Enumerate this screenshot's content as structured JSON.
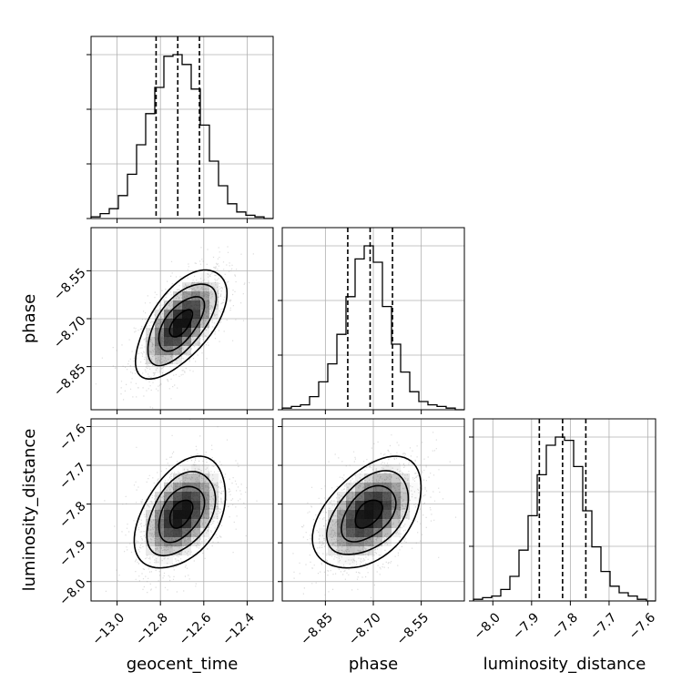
{
  "chart_data": {
    "type": "corner",
    "grid": true,
    "parameters": [
      {
        "name": "geocent_time",
        "xlabel": "geocent_time",
        "ylabel": "",
        "range": [
          -13.12,
          -12.28
        ],
        "ticks": [
          -13.0,
          -12.8,
          -12.6,
          -12.4
        ],
        "tick_labels": [
          "−13.0",
          "−12.8",
          "−12.6",
          "−12.4"
        ],
        "quantiles": [
          -12.82,
          -12.72,
          -12.62
        ],
        "hist_counts": [
          1,
          3,
          6,
          14,
          27,
          45,
          64,
          80,
          99,
          100,
          94,
          79,
          57,
          35,
          20,
          9,
          4,
          2,
          1,
          0
        ]
      },
      {
        "name": "phase",
        "xlabel": "phase",
        "ylabel": "phase",
        "range": [
          -8.985,
          -8.415
        ],
        "ticks": [
          -8.85,
          -8.7,
          -8.55
        ],
        "tick_labels": [
          "−8.85",
          "−8.70",
          "−8.55"
        ],
        "quantiles": [
          -8.78,
          -8.71,
          -8.64
        ],
        "hist_counts": [
          1,
          2,
          3,
          8,
          17,
          28,
          46,
          69,
          92,
          100,
          90,
          63,
          40,
          23,
          11,
          5,
          3,
          2,
          1,
          0
        ]
      },
      {
        "name": "luminosity_distance",
        "xlabel": "luminosity_distance",
        "ylabel": "luminosity_distance",
        "range": [
          -8.05,
          -7.58
        ],
        "ticks": [
          -8.0,
          -7.9,
          -7.8,
          -7.7,
          -7.6
        ],
        "tick_labels": [
          "−8.0",
          "−7.9",
          "−7.8",
          "−7.7",
          "−7.6"
        ],
        "quantiles": [
          -7.88,
          -7.82,
          -7.76
        ],
        "hist_counts": [
          1,
          2,
          3,
          7,
          15,
          31,
          52,
          77,
          95,
          100,
          98,
          82,
          55,
          33,
          18,
          9,
          5,
          3,
          1,
          0
        ]
      }
    ],
    "pairs": [
      {
        "x": "geocent_time",
        "y": "phase",
        "center": [
          -12.705,
          -8.715
        ],
        "sd": [
          0.105,
          0.085
        ],
        "rho": 0.62
      },
      {
        "x": "geocent_time",
        "y": "luminosity_distance",
        "center": [
          -12.705,
          -7.825
        ],
        "sd": [
          0.105,
          0.072
        ],
        "rho": 0.42
      },
      {
        "x": "phase",
        "y": "luminosity_distance",
        "center": [
          -8.715,
          -7.825
        ],
        "sd": [
          0.085,
          0.072
        ],
        "rho": 0.45
      }
    ]
  }
}
